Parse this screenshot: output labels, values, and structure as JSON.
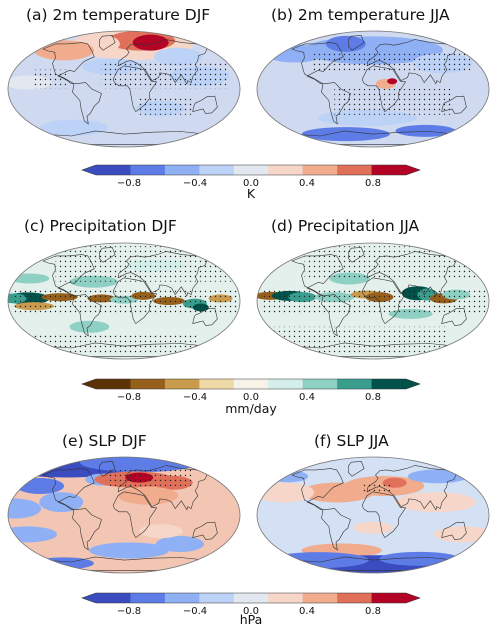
{
  "rows": [
    {
      "colormap": "diverging-blue-red",
      "colors": [
        "#3b4cc0",
        "#5d7ce6",
        "#8fb0f5",
        "#bcd2f7",
        "#e3e8f0",
        "#f5d6c8",
        "#f1ac8e",
        "#e0705a",
        "#b40426"
      ],
      "panels": [
        {
          "title": "(a) 2m temperature DJF"
        },
        {
          "title": "(b) 2m temperature JJA"
        }
      ],
      "colorbar": {
        "ticks": [
          "−0.8",
          "−0.4",
          "0.0",
          "0.4",
          "0.8"
        ],
        "unit": "K"
      }
    },
    {
      "colormap": "diverging-brown-teal",
      "colors": [
        "#5a3205",
        "#96601c",
        "#c99b4d",
        "#ecd9a6",
        "#f6f3e8",
        "#d4eee9",
        "#8fd0c4",
        "#3a9e8f",
        "#00524a"
      ],
      "panels": [
        {
          "title": "(c) Precipitation DJF"
        },
        {
          "title": "(d) Precipitation JJA"
        }
      ],
      "colorbar": {
        "ticks": [
          "−0.8",
          "−0.4",
          "0.0",
          "0.4",
          "0.8"
        ],
        "unit": "mm/day"
      }
    },
    {
      "colormap": "diverging-blue-red",
      "colors": [
        "#3b4cc0",
        "#5d7ce6",
        "#8fb0f5",
        "#bcd2f7",
        "#e3e8f0",
        "#f5d6c8",
        "#f1ac8e",
        "#e0705a",
        "#b40426"
      ],
      "panels": [
        {
          "title": "(e) SLP DJF"
        },
        {
          "title": "(f) SLP JJA"
        }
      ],
      "colorbar": {
        "ticks": [
          "−0.8",
          "−0.4",
          "0.0",
          "0.4",
          "0.8"
        ],
        "unit": "hPa"
      }
    }
  ]
}
